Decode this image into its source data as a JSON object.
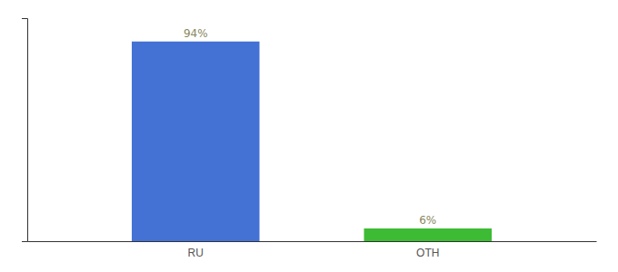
{
  "chart_data": {
    "type": "bar",
    "categories": [
      "RU",
      "OTH"
    ],
    "values": [
      94,
      6
    ],
    "value_labels": [
      "94%",
      "6%"
    ],
    "colors": [
      "#4472d4",
      "#3dbb35"
    ],
    "data_labels": true,
    "ylim": [
      0,
      105
    ],
    "tick_labels": "x",
    "grid": false
  }
}
